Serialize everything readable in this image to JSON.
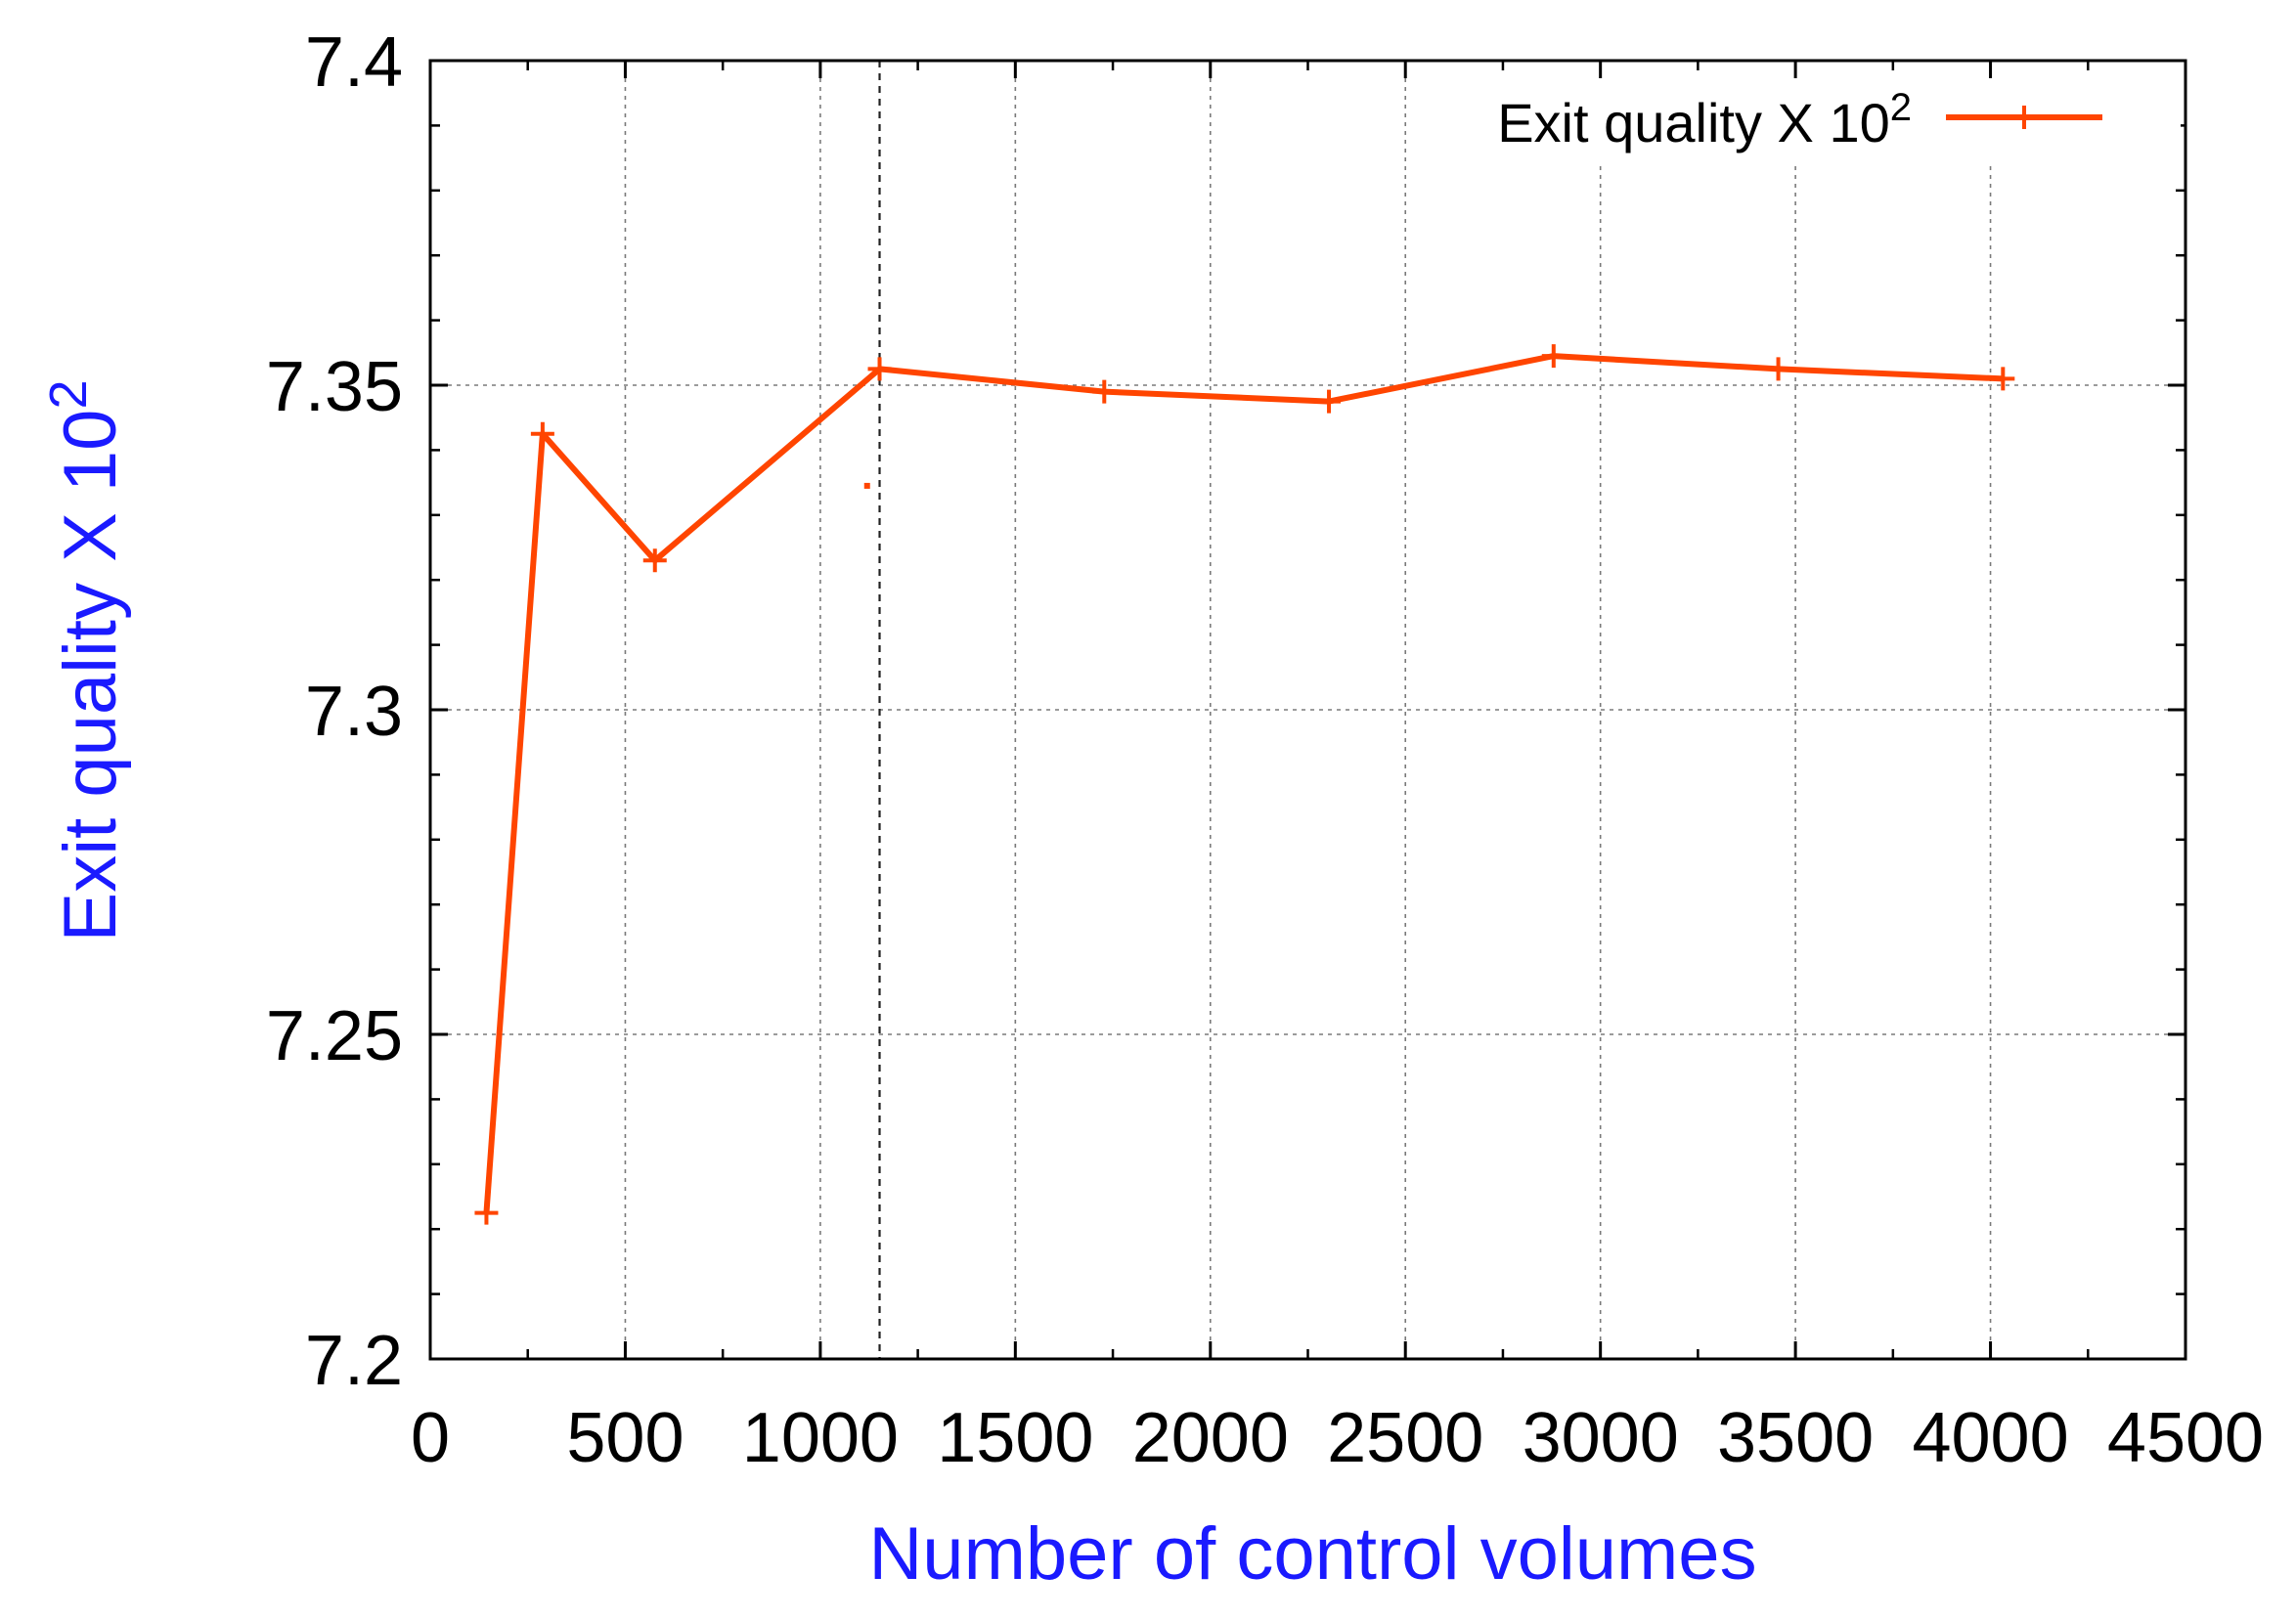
{
  "chart_data": {
    "type": "line",
    "title": "",
    "xlabel": "Number of control volumes",
    "ylabel": {
      "base": "Exit quality X 10",
      "sup": "2"
    },
    "xlim": [
      0,
      4500
    ],
    "ylim": [
      7.2,
      7.4
    ],
    "x_ticks": [
      0,
      500,
      1000,
      1500,
      2000,
      2500,
      3000,
      3500,
      4000,
      4500
    ],
    "x_tick_labels": [
      "0",
      "500",
      "1000",
      "1500",
      "2000",
      "2500",
      "3000",
      "3500",
      "4000",
      "4500"
    ],
    "y_ticks": [
      7.2,
      7.25,
      7.3,
      7.35,
      7.4
    ],
    "y_tick_labels": [
      "7.2",
      "7.25",
      "7.3",
      "7.35",
      "7.4"
    ],
    "grid": true,
    "legend": {
      "placement": "top-right"
    },
    "series": [
      {
        "name": {
          "base": "Exit quality X 10",
          "sup": "2"
        },
        "color": "#ff4500",
        "marker": "plus",
        "x": [
          144,
          288,
          576,
          1152,
          1728,
          2304,
          2880,
          3456,
          4032
        ],
        "y": [
          7.2225,
          7.3425,
          7.323,
          7.3525,
          7.349,
          7.3475,
          7.3545,
          7.3525,
          7.351
        ]
      }
    ],
    "reference_line_x": 1152,
    "stray_point": {
      "x": 1120,
      "y": 7.3345
    }
  },
  "colors": {
    "axis_title": "#1a1aff",
    "series": "#ff4500",
    "grid": "#7a7a7a",
    "axis": "#000000"
  }
}
